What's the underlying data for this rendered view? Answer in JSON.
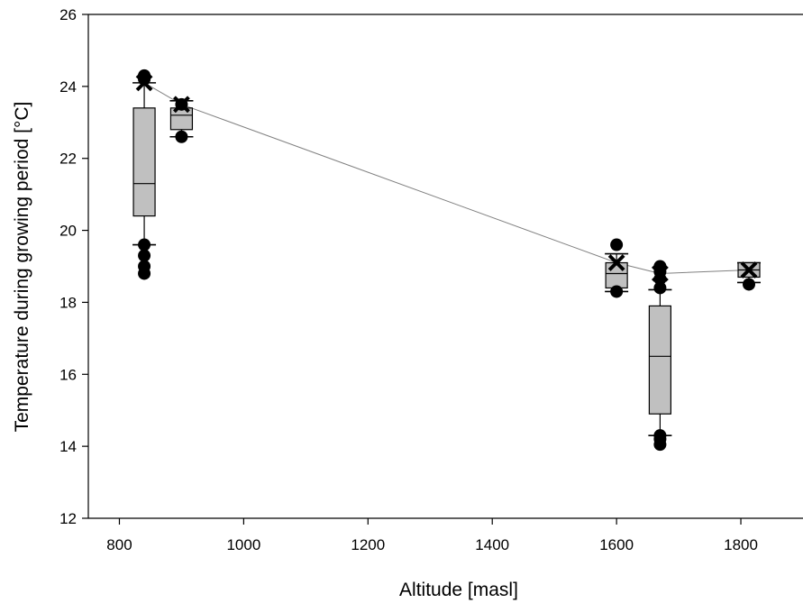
{
  "chart_data": {
    "type": "box",
    "xlabel": "Altitude [masl]",
    "ylabel": "Temperature during growing period [°C]",
    "xlim": [
      750,
      1900
    ],
    "ylim": [
      12,
      26
    ],
    "xticks": [
      800,
      1000,
      1200,
      1400,
      1600,
      1800
    ],
    "yticks": [
      12,
      14,
      16,
      18,
      20,
      22,
      24,
      26
    ],
    "boxes": [
      {
        "x": 840,
        "q1": 20.4,
        "median": 21.3,
        "q3": 23.4,
        "whisker_low": 19.6,
        "whisker_high": 24.1,
        "mean": 24.1,
        "outliers": [
          19.6,
          19.3,
          19.0,
          18.8,
          24.3,
          24.2
        ]
      },
      {
        "x": 900,
        "q1": 22.8,
        "median": 23.2,
        "q3": 23.4,
        "whisker_low": 22.6,
        "whisker_high": 23.6,
        "mean": 23.5,
        "outliers": [
          22.6,
          23.5
        ]
      },
      {
        "x": 1600,
        "q1": 18.4,
        "median": 18.8,
        "q3": 19.1,
        "whisker_low": 18.3,
        "whisker_high": 19.35,
        "mean": 19.1,
        "outliers": [
          19.6,
          18.3
        ]
      },
      {
        "x": 1670,
        "q1": 14.9,
        "median": 16.5,
        "q3": 17.9,
        "whisker_low": 14.3,
        "whisker_high": 18.35,
        "mean": 18.8,
        "outliers": [
          19.0,
          18.85,
          18.65,
          18.4,
          14.3,
          14.2,
          14.05
        ]
      },
      {
        "x": 1813,
        "q1": 18.7,
        "median": 18.9,
        "q3": 19.1,
        "whisker_low": 18.55,
        "whisker_high": 19.1,
        "mean": 18.9,
        "outliers": [
          18.5
        ]
      }
    ],
    "mean_line": {
      "x": [
        840,
        900,
        1600,
        1670,
        1813
      ],
      "y": [
        24.1,
        23.5,
        19.1,
        18.8,
        18.9
      ]
    },
    "grid": false,
    "colors": {
      "box_fill": "#c0c0c0",
      "stroke": "#000000",
      "mean_line": "#808080"
    }
  }
}
